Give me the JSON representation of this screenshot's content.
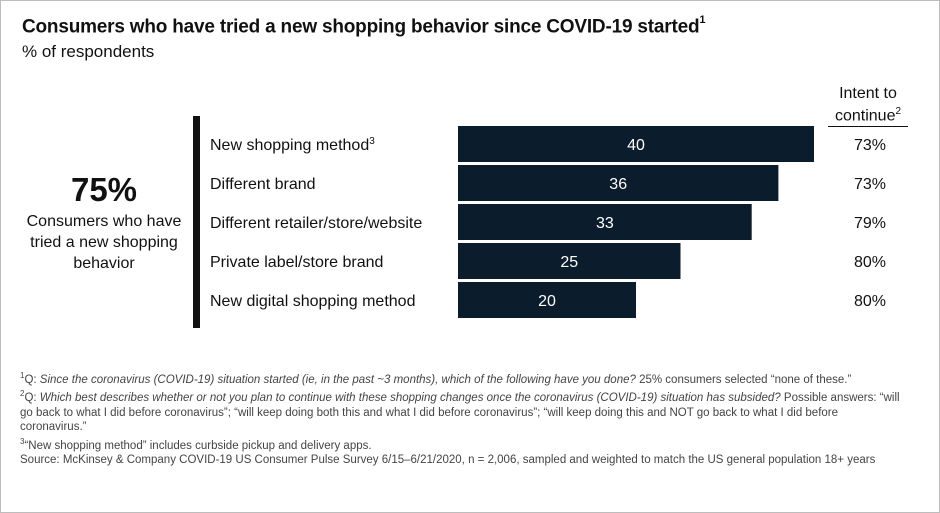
{
  "title": "Consumers who have tried a new shopping behavior since COVID-19 started",
  "title_sup": "1",
  "subtitle": "% of respondents",
  "kpi": {
    "value": "75%",
    "label": "Consumers who have tried a new shopping behavior"
  },
  "intent_header": {
    "line1": "Intent to",
    "line2": "continue",
    "sup": "2"
  },
  "chart_data": {
    "type": "bar",
    "orientation": "horizontal",
    "categories": [
      "New shopping method",
      "Different brand",
      "Different retailer/store/website",
      "Private label/store brand",
      "New digital shopping method"
    ],
    "category_sups": [
      "3",
      "",
      "",
      "",
      ""
    ],
    "values": [
      40,
      36,
      33,
      25,
      20
    ],
    "intent": [
      "73%",
      "73%",
      "79%",
      "80%",
      "80%"
    ],
    "value_labels": [
      "40",
      "36",
      "33",
      "25",
      "20"
    ],
    "bar_color": "#0b1c2c",
    "label_color": "#ffffff",
    "xlim": [
      0,
      40
    ]
  },
  "notes": {
    "n1_sup": "1",
    "n1_q": "Q: ",
    "n1_italic": "Since the coronavirus (COVID-19) situation started (ie, in the past ~3 months), which of the following have you done?",
    "n1_rest": " 25% consumers selected “none of these.”",
    "n2_sup": "2",
    "n2_q": "Q: ",
    "n2_italic": "Which best describes whether or not you plan to continue with these shopping changes once the coronavirus (COVID-19) situation has subsided?",
    "n2_rest": " Possible answers: “will go back to what I did before coronavirus”; “will keep doing both this and what I did before coronavirus”; “will keep doing this and NOT go back to what I did before coronavirus.”",
    "n3_sup": "3",
    "n3_text": "“New shopping method” includes curbside pickup and delivery apps.",
    "source": "Source: McKinsey & Company COVID-19 US Consumer Pulse Survey 6/15–6/21/2020, n = 2,006, sampled and weighted to match the US general population 18+ years"
  }
}
